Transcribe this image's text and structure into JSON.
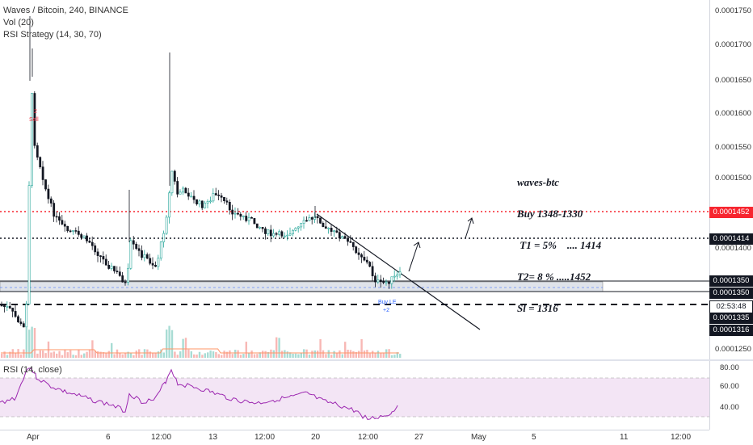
{
  "legend": {
    "symbol": "Waves / Bitcoin, 240, BINANCE",
    "vol": "Vol (20)",
    "strategy": "RSI Strategy (14, 30, 70)"
  },
  "rsi_legend": "RSI (14, close)",
  "price_axis": {
    "ticks": [
      "0.0001750",
      "0.0001700",
      "0.0001650",
      "0.0001600",
      "0.0001550",
      "0.0001500",
      "0.0001400",
      "0.0001250"
    ]
  },
  "price_tags": {
    "t1452": "0.0001452",
    "t1414": "0.0001414",
    "t1350a": "0.0001350",
    "t1350b": "0.0001350",
    "countdown": "02:53:48",
    "t1335": "0.0001335",
    "t1316": "0.0001316"
  },
  "rsi_axis": {
    "ticks": [
      "80.00",
      "60.00",
      "40.00"
    ]
  },
  "time_axis": {
    "ticks": [
      {
        "label": "Apr"
      },
      {
        "label": "6"
      },
      {
        "label": "12:00"
      },
      {
        "label": "13"
      },
      {
        "label": "12:00"
      },
      {
        "label": "20"
      },
      {
        "label": "12:00"
      },
      {
        "label": "27"
      },
      {
        "label": "May"
      },
      {
        "label": "5"
      },
      {
        "label": "11"
      },
      {
        "label": "12:00"
      }
    ]
  },
  "annotation": {
    "line1": "waves-btc",
    "line2": "Buy 1348-1330",
    "line3": " T1 = 5%    .... 1414",
    "line4": "T2= 8 % .....1452",
    "line5": "Sl = 1316"
  },
  "signals": {
    "sell_label": "Sell",
    "buy_label": "Buy LE",
    "buy_count": "+2",
    "sell_count": "2"
  },
  "colors": {
    "up": "#26a69a",
    "down": "#131722",
    "red_line": "#f7252f",
    "rsi_line": "#9c27b0",
    "rsi_band": "#f3e5f5",
    "vol_ma": "#ff9566"
  }
}
